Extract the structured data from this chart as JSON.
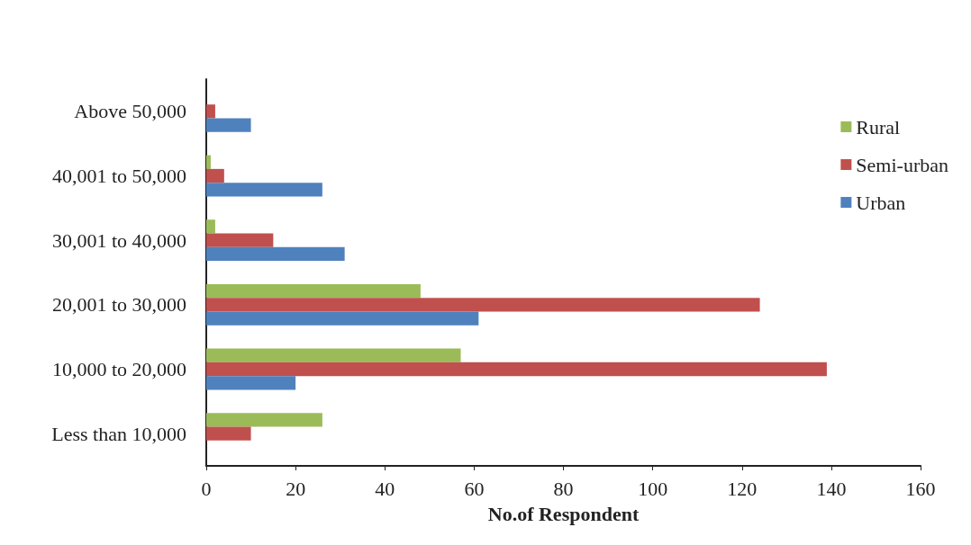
{
  "chart_data": {
    "type": "bar",
    "orientation": "horizontal",
    "xlabel": "No.of Respondent",
    "categories": [
      "Above 50,000",
      "40,001 to 50,000",
      "30,001 to 40,000",
      "20,001 to 30,000",
      "10,000 to 20,000",
      "Less than 10,000"
    ],
    "series": [
      {
        "name": "Rural",
        "color": "#9bbb59",
        "values": [
          0,
          1,
          2,
          48,
          57,
          26
        ]
      },
      {
        "name": "Semi-urban",
        "color": "#c0504d",
        "values": [
          2,
          4,
          15,
          124,
          139,
          10
        ]
      },
      {
        "name": "Urban",
        "color": "#4f81bd",
        "values": [
          10,
          26,
          31,
          61,
          20,
          0
        ]
      }
    ],
    "xlim": [
      0,
      160
    ],
    "xticks": [
      0,
      20,
      40,
      60,
      80,
      100,
      120,
      140,
      160
    ],
    "grid": false,
    "legend": "right"
  }
}
